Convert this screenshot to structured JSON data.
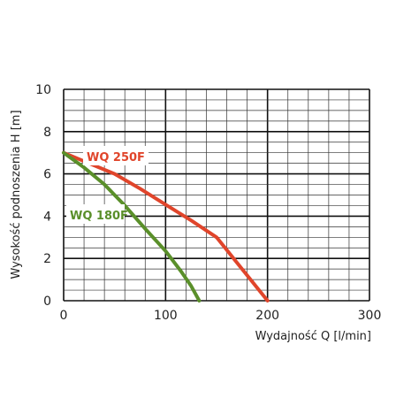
{
  "chart_data": {
    "type": "line",
    "xlabel": "Wydajność Q [l/min]",
    "ylabel": "Wysokość podnoszenia H [m]",
    "xlim": [
      0,
      300
    ],
    "ylim": [
      0,
      10
    ],
    "x_major_ticks": [
      0,
      100,
      200,
      300
    ],
    "y_major_ticks": [
      0,
      2,
      4,
      6,
      8,
      10
    ],
    "x_minor_step": 20,
    "y_minor_step": 0.5,
    "grid": true,
    "legend": "inline labels",
    "series": [
      {
        "name": "WQ 250F",
        "color": "#e0452b",
        "points": [
          [
            0,
            7.0
          ],
          [
            25,
            6.5
          ],
          [
            50,
            6.0
          ],
          [
            75,
            5.3
          ],
          [
            100,
            4.55
          ],
          [
            125,
            3.8
          ],
          [
            150,
            3.0
          ],
          [
            175,
            1.5
          ],
          [
            200,
            0.0
          ]
        ]
      },
      {
        "name": "WQ 180F",
        "color": "#5a8f2a",
        "points": [
          [
            0,
            7.0
          ],
          [
            20,
            6.3
          ],
          [
            40,
            5.5
          ],
          [
            60,
            4.5
          ],
          [
            80,
            3.4
          ],
          [
            100,
            2.35
          ],
          [
            115,
            1.4
          ],
          [
            125,
            0.7
          ],
          [
            133,
            0.0
          ]
        ]
      }
    ]
  }
}
